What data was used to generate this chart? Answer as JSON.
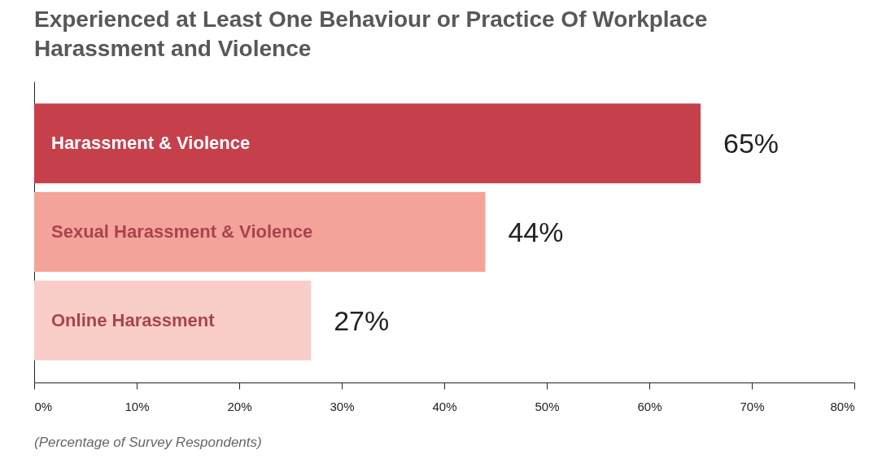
{
  "chart_data": {
    "type": "bar",
    "orientation": "horizontal",
    "title": "Experienced at Least One Behaviour or Practice Of Workplace Harassment and Violence",
    "categories": [
      "Harassment & Violence",
      "Sexual Harassment & Violence",
      "Online Harassment"
    ],
    "values": [
      65,
      44,
      27
    ],
    "colors": [
      "#c6404b",
      "#f4a39a",
      "#f9cdc8"
    ],
    "value_labels": [
      "65%",
      "44%",
      "27%"
    ],
    "xlim": [
      0,
      80
    ],
    "xticks": [
      {
        "value": 0,
        "label": "0%"
      },
      {
        "value": 10,
        "label": "10%"
      },
      {
        "value": 20,
        "label": "20%"
      },
      {
        "value": 30,
        "label": "30%"
      },
      {
        "value": 40,
        "label": "40%"
      },
      {
        "value": 50,
        "label": "50%"
      },
      {
        "value": 60,
        "label": "60%"
      },
      {
        "value": 70,
        "label": "70%"
      },
      {
        "value": 80,
        "label": "80%"
      }
    ],
    "annotations": [
      "(Percentage of Survey Respondents)"
    ]
  }
}
